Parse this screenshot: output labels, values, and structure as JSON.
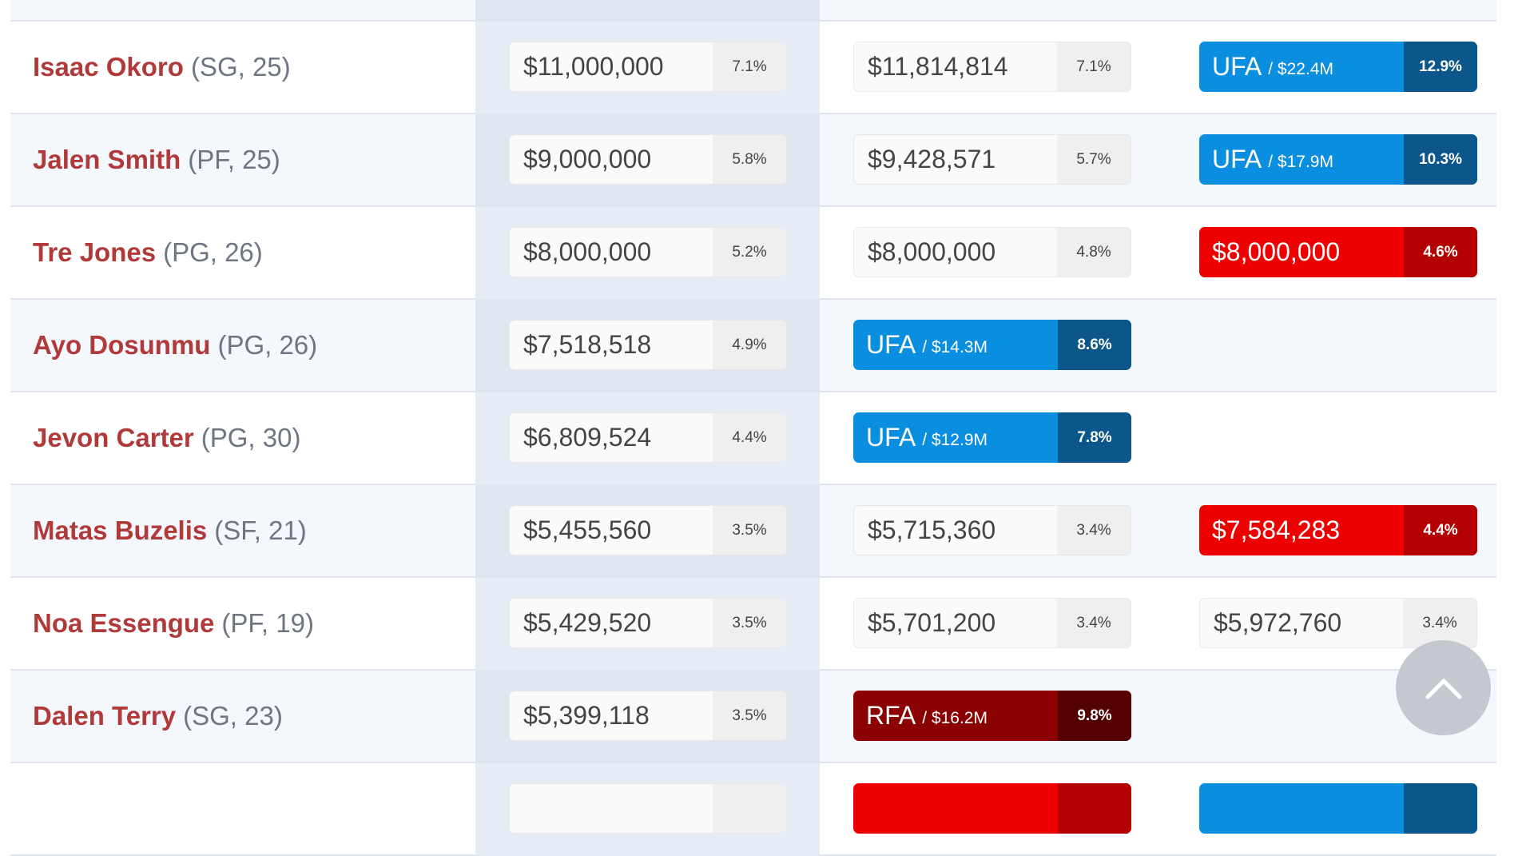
{
  "colors": {
    "ufa": "#0a8ee0",
    "option": "#ee0000",
    "rfa": "#8b0000",
    "name": "#b0393a"
  },
  "rows": [
    {
      "name": "",
      "info": "",
      "cells": [
        {
          "type": "plain",
          "amount": "",
          "pct": ""
        },
        {
          "type": "plain",
          "amount": "",
          "pct": ""
        },
        null
      ]
    },
    {
      "name": "Isaac Okoro",
      "info": "(SG, 25)",
      "cells": [
        {
          "type": "plain",
          "amount": "$11,000,000",
          "pct": "7.1%"
        },
        {
          "type": "plain",
          "amount": "$11,814,814",
          "pct": "7.1%"
        },
        {
          "type": "ufa",
          "amount": "UFA",
          "sub": "/ $22.4M",
          "pct": "12.9%"
        }
      ]
    },
    {
      "name": "Jalen Smith",
      "info": "(PF, 25)",
      "cells": [
        {
          "type": "plain",
          "amount": "$9,000,000",
          "pct": "5.8%"
        },
        {
          "type": "plain",
          "amount": "$9,428,571",
          "pct": "5.7%"
        },
        {
          "type": "ufa",
          "amount": "UFA",
          "sub": "/ $17.9M",
          "pct": "10.3%"
        }
      ]
    },
    {
      "name": "Tre Jones",
      "info": "(PG, 26)",
      "cells": [
        {
          "type": "plain",
          "amount": "$8,000,000",
          "pct": "5.2%"
        },
        {
          "type": "plain",
          "amount": "$8,000,000",
          "pct": "4.8%"
        },
        {
          "type": "red",
          "amount": "$8,000,000",
          "pct": "4.6%"
        }
      ]
    },
    {
      "name": "Ayo Dosunmu",
      "info": "(PG, 26)",
      "cells": [
        {
          "type": "plain",
          "amount": "$7,518,518",
          "pct": "4.9%"
        },
        {
          "type": "ufa",
          "amount": "UFA",
          "sub": "/ $14.3M",
          "pct": "8.6%"
        },
        null
      ]
    },
    {
      "name": "Jevon Carter",
      "info": "(PG, 30)",
      "cells": [
        {
          "type": "plain",
          "amount": "$6,809,524",
          "pct": "4.4%"
        },
        {
          "type": "ufa",
          "amount": "UFA",
          "sub": "/ $12.9M",
          "pct": "7.8%"
        },
        null
      ]
    },
    {
      "name": "Matas Buzelis",
      "info": "(SF, 21)",
      "cells": [
        {
          "type": "plain",
          "amount": "$5,455,560",
          "pct": "3.5%"
        },
        {
          "type": "plain",
          "amount": "$5,715,360",
          "pct": "3.4%"
        },
        {
          "type": "red",
          "amount": "$7,584,283",
          "pct": "4.4%"
        }
      ]
    },
    {
      "name": "Noa Essengue",
      "info": "(PF, 19)",
      "cells": [
        {
          "type": "plain",
          "amount": "$5,429,520",
          "pct": "3.5%"
        },
        {
          "type": "plain",
          "amount": "$5,701,200",
          "pct": "3.4%"
        },
        {
          "type": "plain",
          "amount": "$5,972,760",
          "pct": "3.4%"
        }
      ]
    },
    {
      "name": "Dalen Terry",
      "info": "(SG, 23)",
      "cells": [
        {
          "type": "plain",
          "amount": "$5,399,118",
          "pct": "3.5%"
        },
        {
          "type": "rfa",
          "amount": "RFA",
          "sub": "/ $16.2M",
          "pct": "9.8%"
        },
        null
      ]
    },
    {
      "name": "",
      "info": "",
      "cells": [
        {
          "type": "plain",
          "amount": "",
          "pct": ""
        },
        {
          "type": "red",
          "amount": "",
          "pct": ""
        },
        {
          "type": "ufa",
          "amount": "",
          "pct": ""
        }
      ]
    }
  ],
  "scroll_top_icon": "chevron-up-icon"
}
